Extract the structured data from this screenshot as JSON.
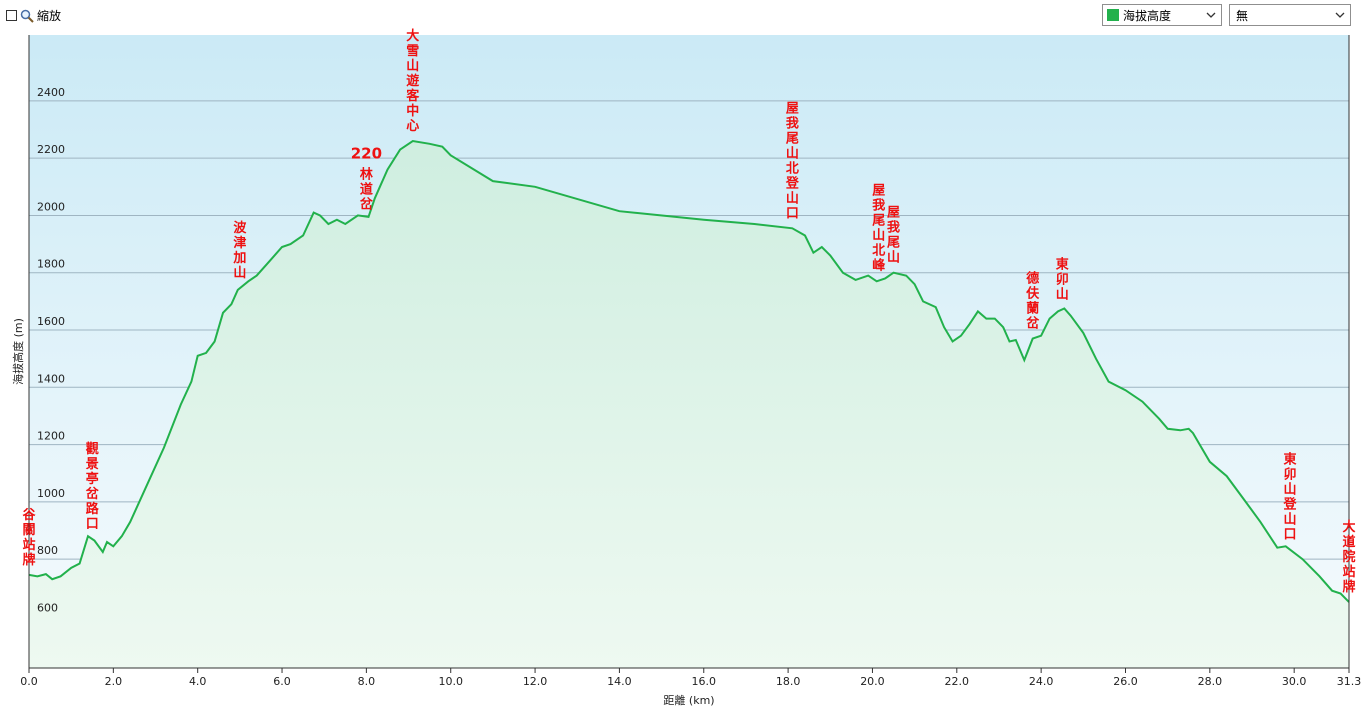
{
  "toolbar": {
    "zoom_label": "縮放",
    "series_select": "海拔高度",
    "series_color": "#22b14c",
    "compare_select": "無"
  },
  "chart_data": {
    "type": "area",
    "xlabel": "距離 (km)",
    "ylabel": "海拔高度 (m)",
    "xlim": [
      0,
      31.3
    ],
    "ylim": [
      420,
      2630
    ],
    "x_ticks": [
      "0.0",
      "2.0",
      "4.0",
      "6.0",
      "8.0",
      "10.0",
      "12.0",
      "14.0",
      "16.0",
      "18.0",
      "20.0",
      "22.0",
      "24.0",
      "26.0",
      "28.0",
      "30.0",
      "31.3"
    ],
    "y_ticks": [
      "600",
      "800",
      "1000",
      "1200",
      "1400",
      "1600",
      "1800",
      "2000",
      "2200",
      "2400"
    ],
    "grid": true,
    "series": [
      {
        "color": "#22b14c",
        "points": [
          [
            0,
            745
          ],
          [
            0.2,
            740
          ],
          [
            0.4,
            748
          ],
          [
            0.55,
            730
          ],
          [
            0.75,
            740
          ],
          [
            1.0,
            770
          ],
          [
            1.2,
            785
          ],
          [
            1.4,
            880
          ],
          [
            1.55,
            865
          ],
          [
            1.75,
            825
          ],
          [
            1.85,
            860
          ],
          [
            2.0,
            845
          ],
          [
            2.2,
            880
          ],
          [
            2.4,
            930
          ],
          [
            2.8,
            1060
          ],
          [
            3.2,
            1190
          ],
          [
            3.6,
            1340
          ],
          [
            3.85,
            1420
          ],
          [
            4.0,
            1510
          ],
          [
            4.2,
            1520
          ],
          [
            4.4,
            1560
          ],
          [
            4.6,
            1660
          ],
          [
            4.8,
            1690
          ],
          [
            4.95,
            1740
          ],
          [
            5.2,
            1770
          ],
          [
            5.4,
            1790
          ],
          [
            5.7,
            1840
          ],
          [
            6.0,
            1890
          ],
          [
            6.2,
            1900
          ],
          [
            6.5,
            1930
          ],
          [
            6.75,
            2010
          ],
          [
            6.9,
            2000
          ],
          [
            7.1,
            1970
          ],
          [
            7.3,
            1985
          ],
          [
            7.5,
            1970
          ],
          [
            7.8,
            2000
          ],
          [
            8.05,
            1995
          ],
          [
            8.2,
            2060
          ],
          [
            8.5,
            2160
          ],
          [
            8.8,
            2230
          ],
          [
            9.1,
            2260
          ],
          [
            9.5,
            2250
          ],
          [
            9.8,
            2240
          ],
          [
            10.0,
            2210
          ],
          [
            11.0,
            2120
          ],
          [
            12.0,
            2100
          ],
          [
            14.0,
            2015
          ],
          [
            16.0,
            1985
          ],
          [
            17.2,
            1970
          ],
          [
            18.1,
            1955
          ],
          [
            18.4,
            1930
          ],
          [
            18.6,
            1870
          ],
          [
            18.8,
            1890
          ],
          [
            19.0,
            1860
          ],
          [
            19.3,
            1800
          ],
          [
            19.6,
            1775
          ],
          [
            19.9,
            1790
          ],
          [
            20.1,
            1770
          ],
          [
            20.3,
            1780
          ],
          [
            20.5,
            1800
          ],
          [
            20.8,
            1790
          ],
          [
            21.0,
            1760
          ],
          [
            21.2,
            1700
          ],
          [
            21.5,
            1680
          ],
          [
            21.7,
            1610
          ],
          [
            21.9,
            1560
          ],
          [
            22.1,
            1580
          ],
          [
            22.3,
            1620
          ],
          [
            22.5,
            1665
          ],
          [
            22.7,
            1640
          ],
          [
            22.9,
            1640
          ],
          [
            23.1,
            1610
          ],
          [
            23.25,
            1560
          ],
          [
            23.4,
            1565
          ],
          [
            23.6,
            1495
          ],
          [
            23.8,
            1570
          ],
          [
            24.0,
            1580
          ],
          [
            24.2,
            1640
          ],
          [
            24.4,
            1665
          ],
          [
            24.55,
            1675
          ],
          [
            24.7,
            1650
          ],
          [
            25.0,
            1590
          ],
          [
            25.3,
            1500
          ],
          [
            25.6,
            1420
          ],
          [
            26.0,
            1390
          ],
          [
            26.4,
            1350
          ],
          [
            26.8,
            1290
          ],
          [
            27.0,
            1255
          ],
          [
            27.3,
            1250
          ],
          [
            27.5,
            1255
          ],
          [
            27.6,
            1240
          ],
          [
            27.8,
            1190
          ],
          [
            28.0,
            1140
          ],
          [
            28.4,
            1090
          ],
          [
            28.8,
            1010
          ],
          [
            29.2,
            930
          ],
          [
            29.6,
            840
          ],
          [
            29.8,
            845
          ],
          [
            30.2,
            800
          ],
          [
            30.6,
            740
          ],
          [
            30.9,
            690
          ],
          [
            31.1,
            680
          ],
          [
            31.3,
            650
          ]
        ]
      }
    ],
    "annotations": [
      {
        "label": "谷關站牌",
        "x": 0.0
      },
      {
        "label": "觀景亭岔路口",
        "x": 1.5
      },
      {
        "label": "波津加山",
        "x": 5.0
      },
      {
        "label": "220",
        "sub": "林道岔",
        "x": 8.0
      },
      {
        "label": "大雪山遊客中心",
        "x": 9.1
      },
      {
        "label": "屋我尾山北登山口",
        "x": 18.1
      },
      {
        "label": "屋我尾山北峰",
        "x": 20.15
      },
      {
        "label": "屋我尾山",
        "x": 20.5
      },
      {
        "label": "德伕蘭岔",
        "x": 23.8
      },
      {
        "label": "東卯山",
        "x": 24.5
      },
      {
        "label": "東卯山登山口",
        "x": 29.9
      },
      {
        "label": "大道院站牌",
        "x": 31.3
      }
    ]
  }
}
